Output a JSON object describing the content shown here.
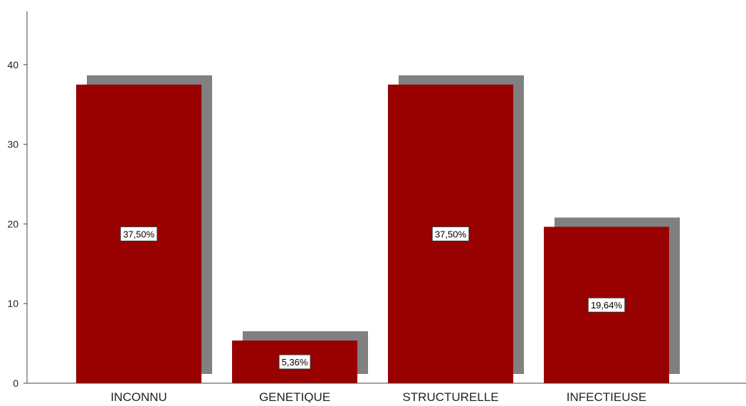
{
  "chart_data": {
    "type": "bar",
    "categories": [
      "INCONNU",
      "GENETIQUE",
      "STRUCTURELLE",
      "INFECTIEUSE"
    ],
    "values": [
      37.5,
      5.36,
      37.5,
      19.64
    ],
    "data_labels": [
      "37,50%",
      "5,36%",
      "37,50%",
      "19,64%"
    ],
    "y_ticks": [
      "0",
      "10",
      "20",
      "30",
      "40"
    ],
    "ylim": [
      0,
      47
    ],
    "title": "",
    "xlabel": "",
    "ylabel": "",
    "grid": false,
    "bar_color": "#990000",
    "shadow_color": "#808080"
  }
}
